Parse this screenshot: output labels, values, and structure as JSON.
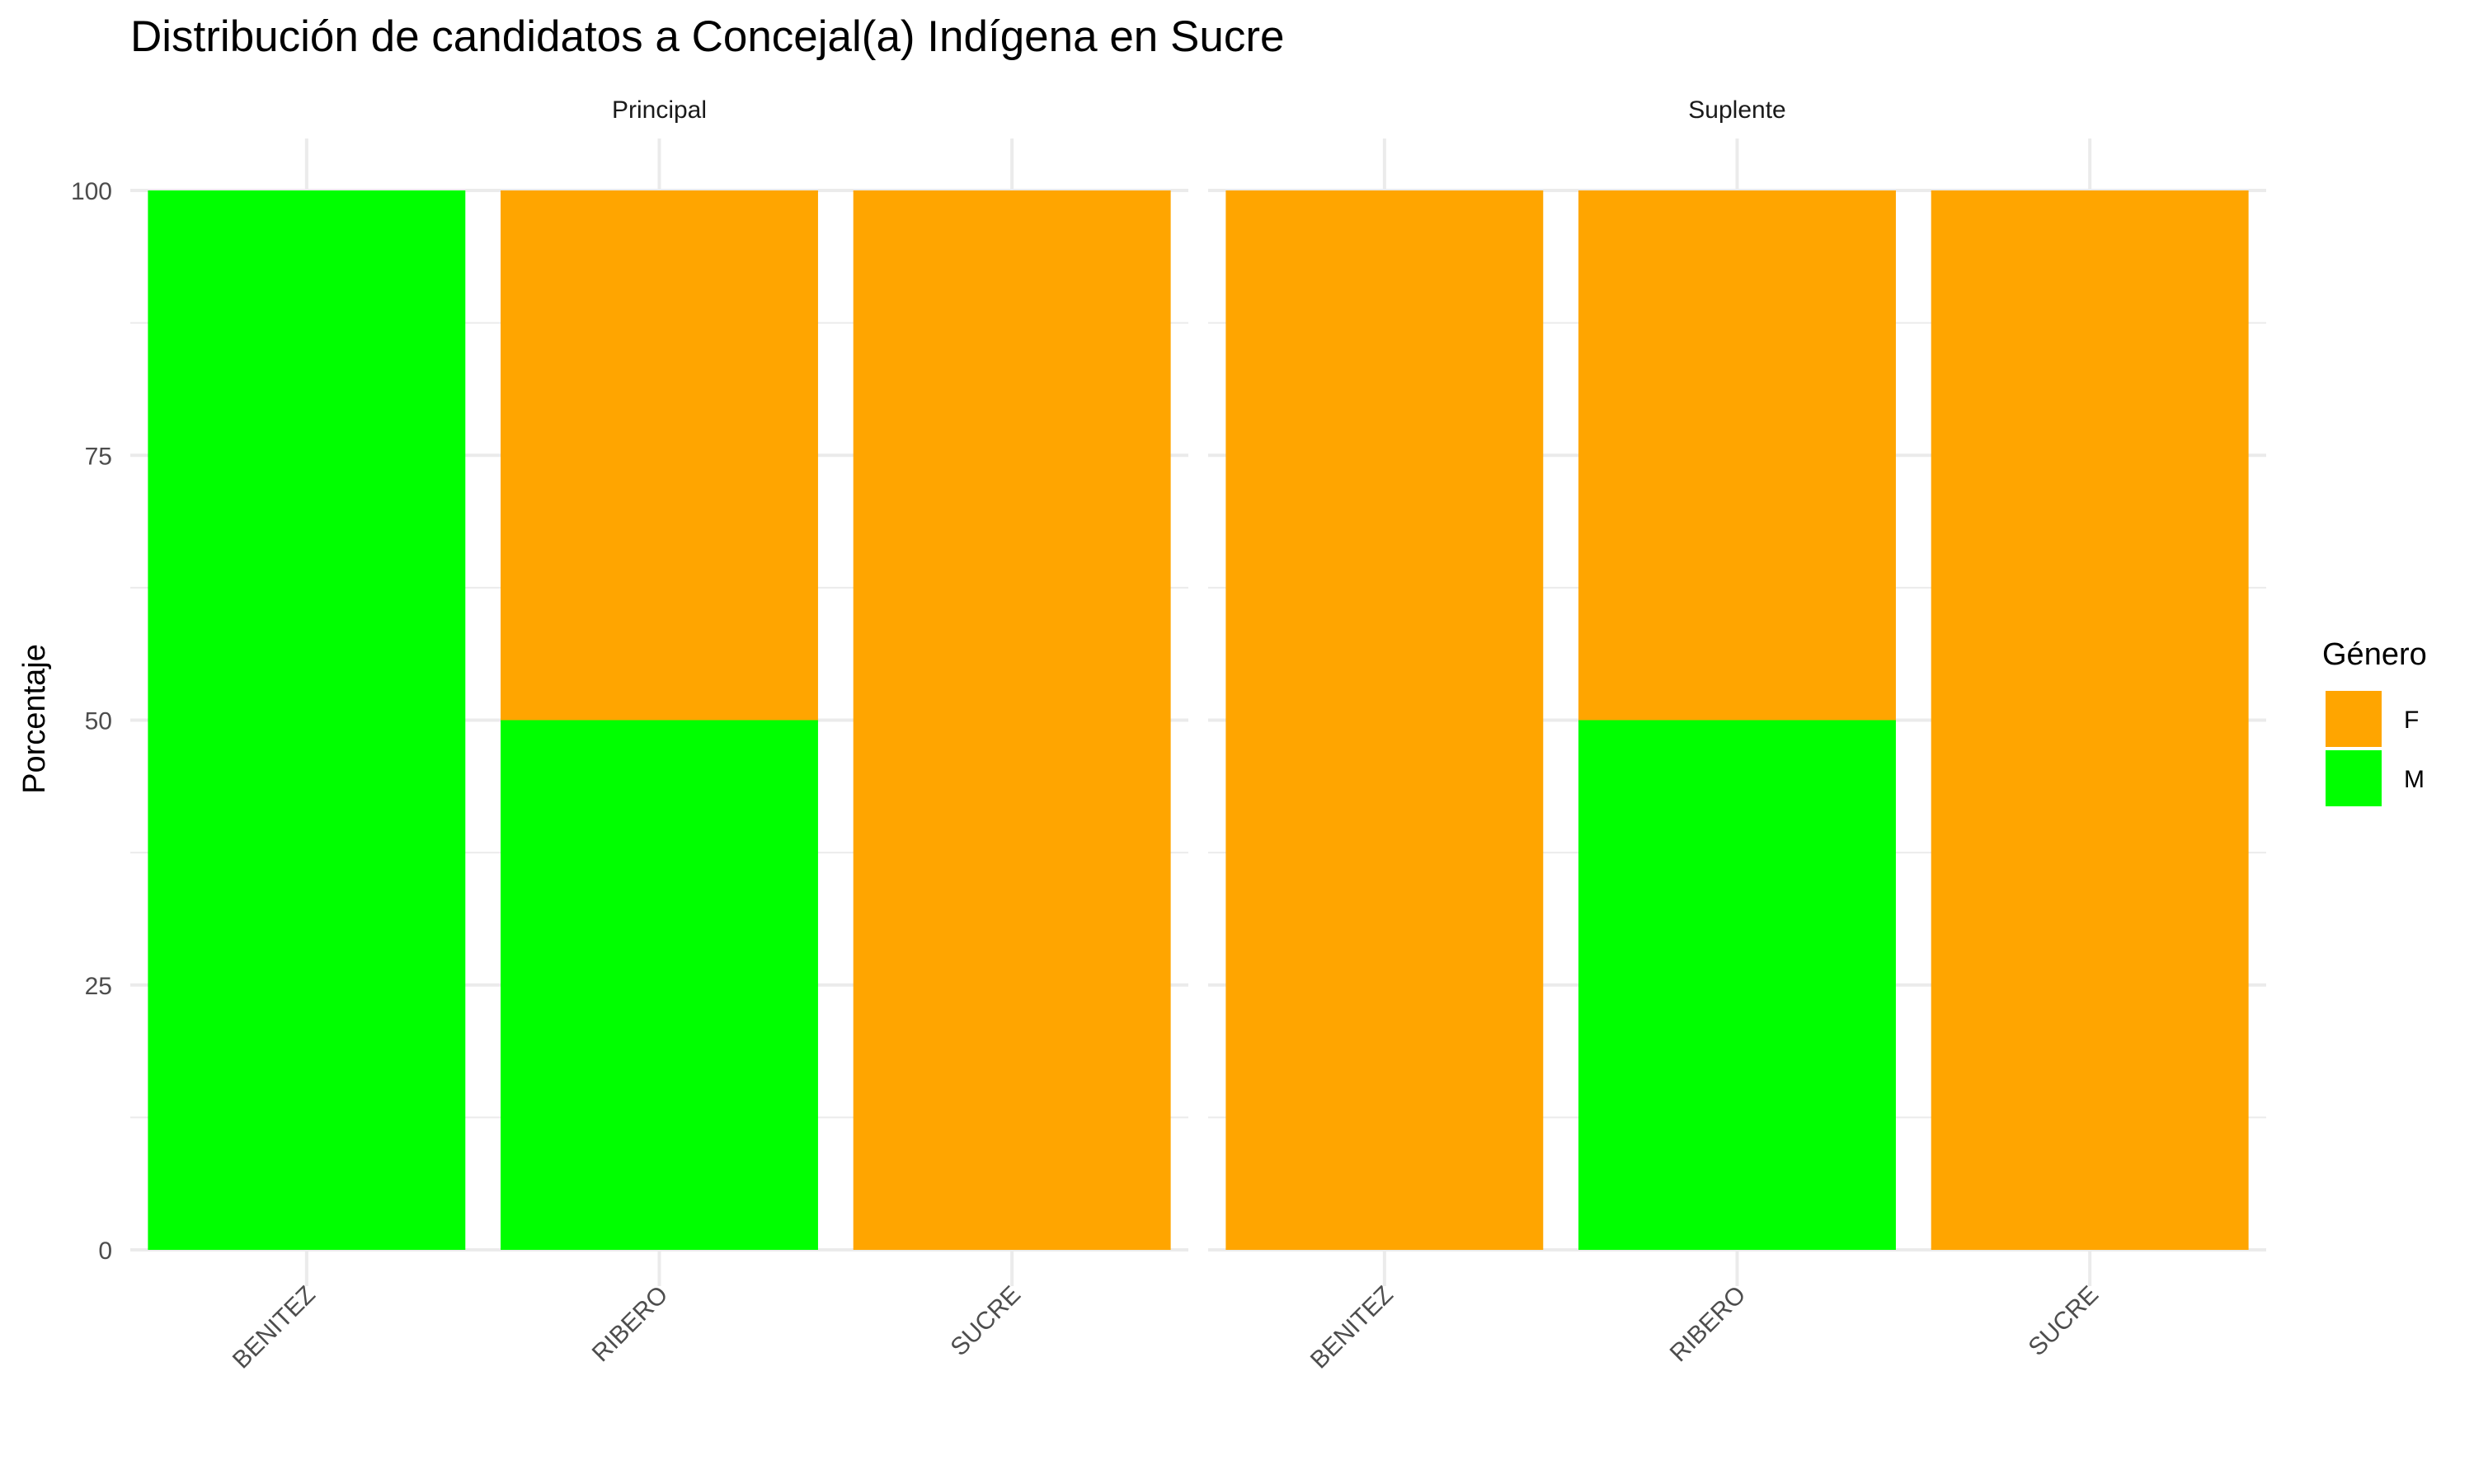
{
  "chart_data": {
    "type": "bar",
    "stacked": true,
    "title": "Distribución de candidatos a Concejal(a) Indígena en Sucre",
    "ylabel": "Porcentaje",
    "xlabel": "",
    "ylim": [
      0,
      100
    ],
    "yticks": [
      0,
      25,
      50,
      75,
      100
    ],
    "grid": true,
    "legend": {
      "title": "Género",
      "position": "right",
      "entries": [
        {
          "name": "F",
          "color": "#FFA500"
        },
        {
          "name": "M",
          "color": "#00FF00"
        }
      ]
    },
    "facets": [
      {
        "label": "Principal",
        "categories": [
          "BENITEZ",
          "RIBERO",
          "SUCRE"
        ],
        "series": [
          {
            "name": "F",
            "values": [
              0,
              50,
              100
            ]
          },
          {
            "name": "M",
            "values": [
              100,
              50,
              0
            ]
          }
        ]
      },
      {
        "label": "Suplente",
        "categories": [
          "BENITEZ",
          "RIBERO",
          "SUCRE"
        ],
        "series": [
          {
            "name": "F",
            "values": [
              100,
              50,
              100
            ]
          },
          {
            "name": "M",
            "values": [
              0,
              50,
              0
            ]
          }
        ]
      }
    ]
  }
}
